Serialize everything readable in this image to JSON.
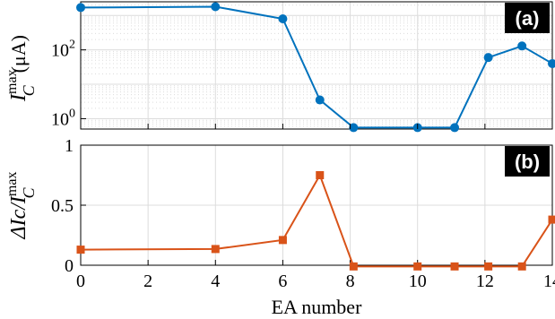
{
  "chart_data": [
    {
      "panel": "(a)",
      "type": "line",
      "ylabel": {
        "prefix": "I",
        "sup": "max",
        "sub": "C",
        "unit": "(μA)"
      },
      "yscale": "log",
      "ylim": [
        0.5,
        2500
      ],
      "xlim": [
        0,
        14
      ],
      "yticks": [
        {
          "value": 1,
          "base": "10",
          "exp": "0"
        },
        {
          "value": 100,
          "base": "10",
          "exp": "2"
        }
      ],
      "grid": true,
      "color": "#0072BD",
      "marker": "circle",
      "x": [
        0,
        4,
        6,
        7.1,
        8.1,
        10,
        11.1,
        12.1,
        13.1,
        14
      ],
      "y": [
        1700,
        1800,
        800,
        3.5,
        0.55,
        0.55,
        0.55,
        60,
        130,
        40
      ]
    },
    {
      "panel": "(b)",
      "type": "line",
      "ylabel": {
        "prefix": "ΔIc/I",
        "sup": "max",
        "sub": "C"
      },
      "yscale": "linear",
      "ylim": [
        0,
        1
      ],
      "xlim": [
        0,
        14
      ],
      "yticks": [
        "0",
        "0.5",
        "1"
      ],
      "xticks": [
        "0",
        "2",
        "4",
        "6",
        "8",
        "10",
        "12",
        "14"
      ],
      "xlabel": "EA number",
      "grid": true,
      "color": "#D95319",
      "marker": "square",
      "x": [
        0,
        4,
        6,
        7.1,
        8.1,
        10,
        11.1,
        12.1,
        13.1,
        14
      ],
      "y": [
        0.13,
        0.135,
        0.21,
        0.75,
        -0.01,
        -0.01,
        -0.01,
        -0.01,
        -0.01,
        0.38
      ]
    }
  ]
}
